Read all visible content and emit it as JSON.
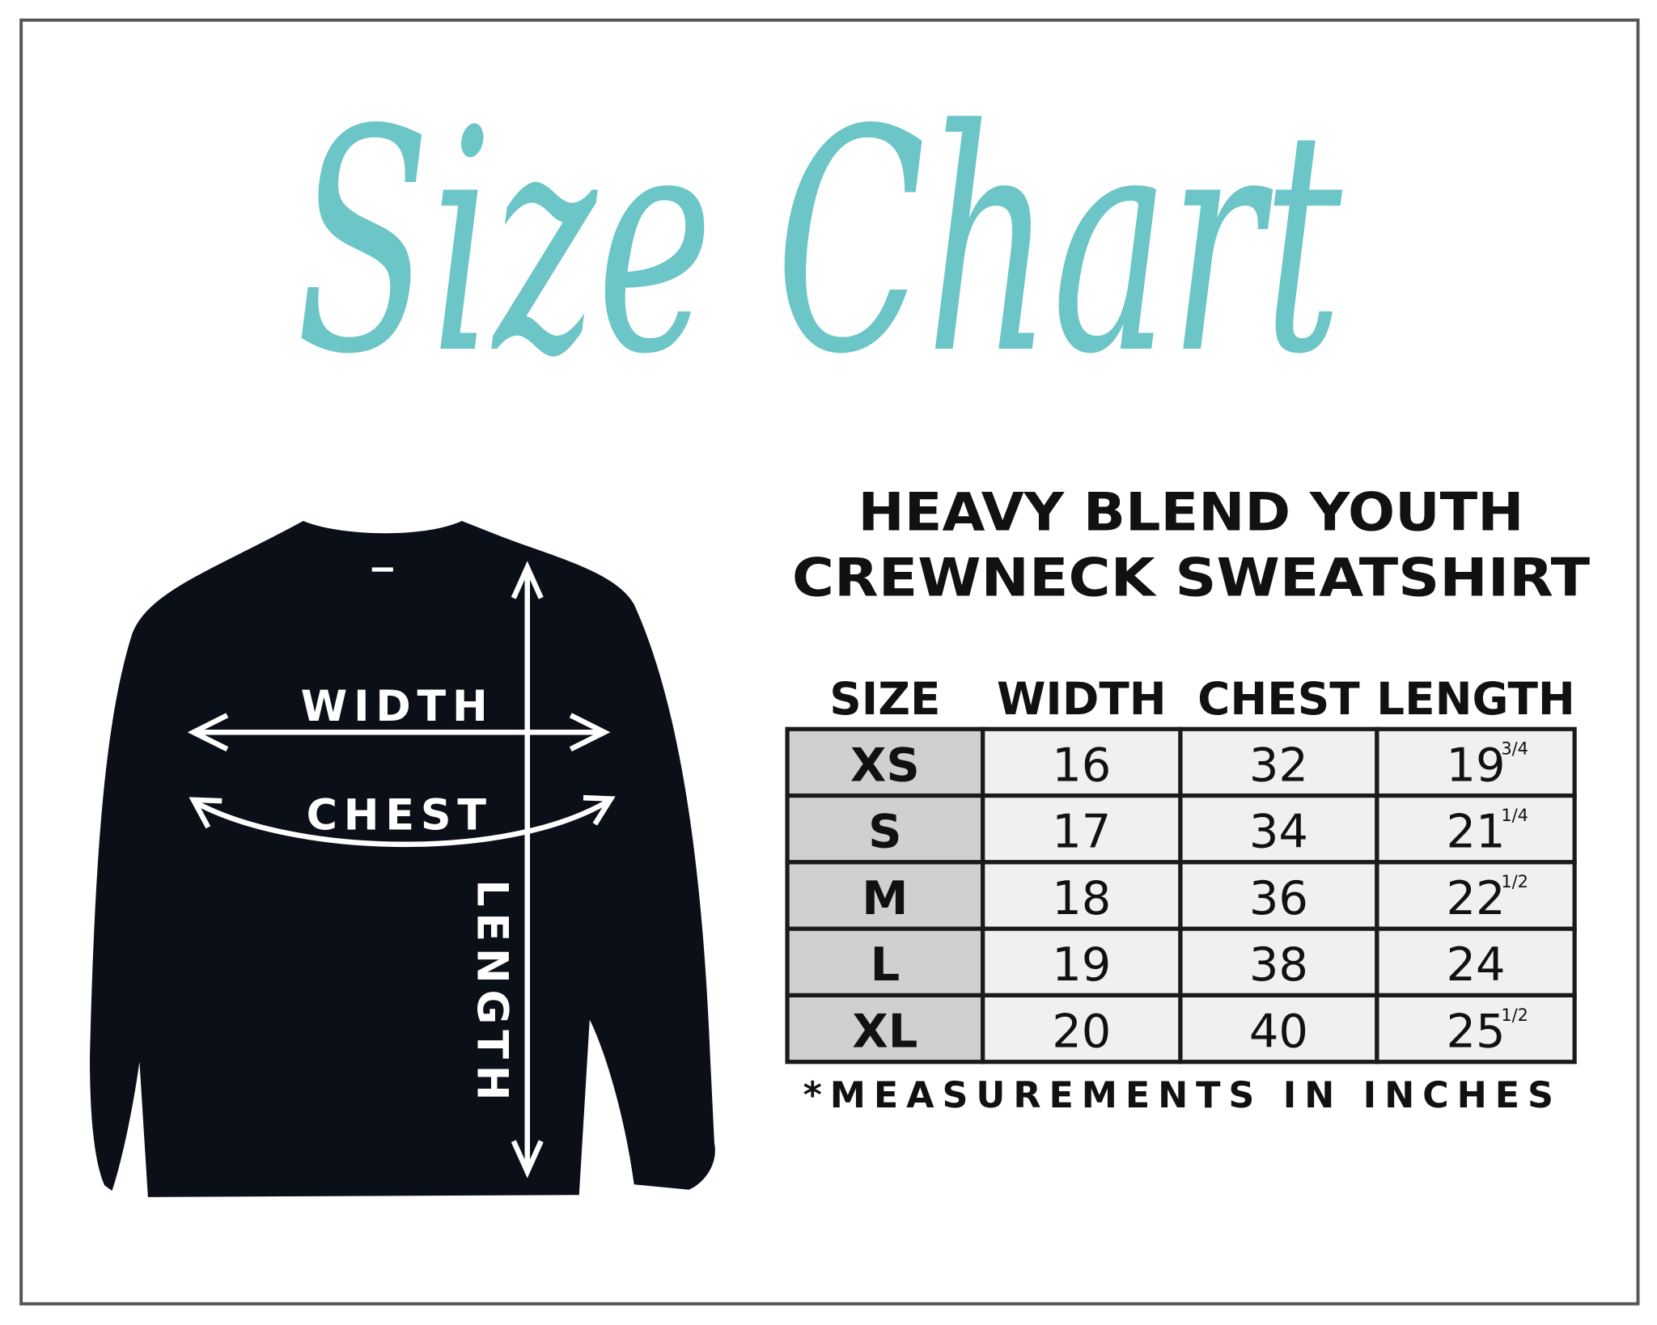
{
  "title": "Size Chart",
  "product": {
    "line1": "HEAVY BLEND YOUTH",
    "line2": "CREWNECK SWEATSHIRT"
  },
  "diagram": {
    "width_label": "WIDTH",
    "chest_label": "CHEST",
    "length_label": "LENGTH"
  },
  "table": {
    "headers": [
      "SIZE",
      "WIDTH",
      "CHEST",
      "LENGTH"
    ],
    "rows": [
      {
        "size": "XS",
        "width": "16",
        "chest": "32",
        "length": "19",
        "length_fraction": "3/4"
      },
      {
        "size": "S",
        "width": "17",
        "chest": "34",
        "length": "21",
        "length_fraction": "1/4"
      },
      {
        "size": "M",
        "width": "18",
        "chest": "36",
        "length": "22",
        "length_fraction": "1/2"
      },
      {
        "size": "L",
        "width": "19",
        "chest": "38",
        "length": "24",
        "length_fraction": ""
      },
      {
        "size": "XL",
        "width": "20",
        "chest": "40",
        "length": "25",
        "length_fraction": "1/2"
      }
    ]
  },
  "footnote": "*MEASUREMENTS IN INCHES",
  "colors": {
    "title": "#6cc5c6",
    "border": "#555555",
    "size_cell": "#d0d0d0",
    "value_cell": "#f0f0f0",
    "ink": "#111111",
    "garment": "#0b0f17"
  }
}
